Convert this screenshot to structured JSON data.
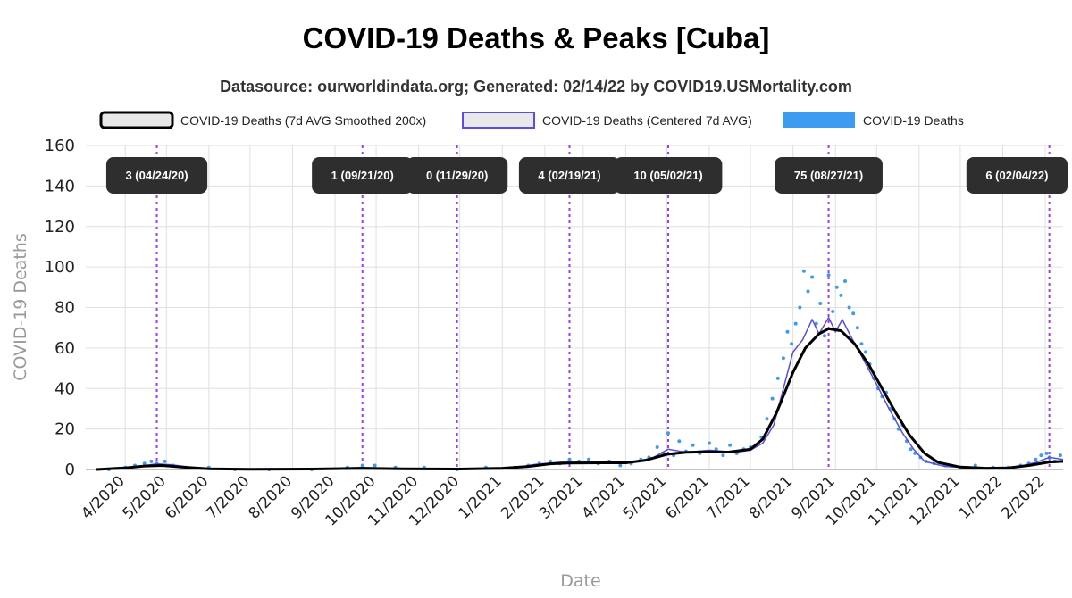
{
  "chart_data": {
    "type": "line",
    "title": "COVID-19 Deaths & Peaks [Cuba]",
    "subtitle": "Datasource: ourworldindata.org; Generated: 02/14/22 by COVID19.USMortality.com",
    "xlabel": "Date",
    "ylabel": "COVID-19 Deaths",
    "ylim": [
      0,
      160
    ],
    "yticks": [
      0,
      20,
      40,
      60,
      80,
      100,
      120,
      140,
      160
    ],
    "xlim": [
      "2020-03-11",
      "2022-02-14"
    ],
    "xticks": [
      {
        "date": "2020-04-01",
        "label": "4/2020"
      },
      {
        "date": "2020-05-01",
        "label": "5/2020"
      },
      {
        "date": "2020-06-01",
        "label": "6/2020"
      },
      {
        "date": "2020-07-01",
        "label": "7/2020"
      },
      {
        "date": "2020-08-01",
        "label": "8/2020"
      },
      {
        "date": "2020-09-01",
        "label": "9/2020"
      },
      {
        "date": "2020-10-01",
        "label": "10/2020"
      },
      {
        "date": "2020-11-01",
        "label": "11/2020"
      },
      {
        "date": "2020-12-01",
        "label": "12/2020"
      },
      {
        "date": "2021-01-01",
        "label": "1/2021"
      },
      {
        "date": "2021-02-01",
        "label": "2/2021"
      },
      {
        "date": "2021-03-01",
        "label": "3/2021"
      },
      {
        "date": "2021-04-01",
        "label": "4/2021"
      },
      {
        "date": "2021-05-01",
        "label": "5/2021"
      },
      {
        "date": "2021-06-01",
        "label": "6/2021"
      },
      {
        "date": "2021-07-01",
        "label": "7/2021"
      },
      {
        "date": "2021-08-01",
        "label": "8/2021"
      },
      {
        "date": "2021-09-01",
        "label": "9/2021"
      },
      {
        "date": "2021-10-01",
        "label": "10/2021"
      },
      {
        "date": "2021-11-01",
        "label": "11/2021"
      },
      {
        "date": "2021-12-01",
        "label": "12/2021"
      },
      {
        "date": "2022-01-01",
        "label": "1/2022"
      },
      {
        "date": "2022-02-01",
        "label": "2/2022"
      }
    ],
    "grid": true,
    "legend": {
      "position": "top",
      "entries": [
        {
          "key": "smoothed",
          "label": "COVID-19 Deaths (7d AVG Smoothed 200x)",
          "fill": "#e8e8e8",
          "stroke": "#000000"
        },
        {
          "key": "centered",
          "label": "COVID-19 Deaths (Centered 7d AVG)",
          "fill": "#e8e8e8",
          "stroke": "#5a4de0"
        },
        {
          "key": "daily",
          "label": "COVID-19 Deaths",
          "fill": "#3d9bf0",
          "stroke": "#3d9bf0"
        }
      ]
    },
    "colors": {
      "smoothed": "#000000",
      "centered": "#5a4de0",
      "daily": "#3d9bf0",
      "peak_line": "#9b3df0",
      "peak_box": "#2e2e2e"
    },
    "peaks": [
      {
        "date": "2020-04-24",
        "label": "3 (04/24/20)"
      },
      {
        "date": "2020-09-21",
        "label": "1 (09/21/20)"
      },
      {
        "date": "2020-11-29",
        "label": "0 (11/29/20)"
      },
      {
        "date": "2021-02-19",
        "label": "4 (02/19/21)"
      },
      {
        "date": "2021-05-02",
        "label": "10 (05/02/21)"
      },
      {
        "date": "2021-08-27",
        "label": "75 (08/27/21)"
      },
      {
        "date": "2022-02-04",
        "label": "6 (02/04/22)"
      }
    ],
    "series": [
      {
        "name": "COVID-19 Deaths (7d AVG Smoothed 200x)",
        "key": "smoothed",
        "points": [
          [
            "2020-03-11",
            0
          ],
          [
            "2020-04-01",
            0.8
          ],
          [
            "2020-04-15",
            1.7
          ],
          [
            "2020-04-28",
            2.0
          ],
          [
            "2020-05-12",
            1.2
          ],
          [
            "2020-06-01",
            0.3
          ],
          [
            "2020-07-01",
            0.1
          ],
          [
            "2020-08-15",
            0.2
          ],
          [
            "2020-09-21",
            0.6
          ],
          [
            "2020-10-20",
            0.3
          ],
          [
            "2020-12-01",
            0.2
          ],
          [
            "2021-01-01",
            0.6
          ],
          [
            "2021-01-20",
            1.5
          ],
          [
            "2021-02-05",
            2.8
          ],
          [
            "2021-02-19",
            3.2
          ],
          [
            "2021-03-15",
            3.3
          ],
          [
            "2021-04-01",
            3.3
          ],
          [
            "2021-04-15",
            4.5
          ],
          [
            "2021-05-01",
            7.5
          ],
          [
            "2021-05-15",
            8.5
          ],
          [
            "2021-06-01",
            8.7
          ],
          [
            "2021-06-15",
            8.6
          ],
          [
            "2021-07-01",
            10
          ],
          [
            "2021-07-10",
            15
          ],
          [
            "2021-07-20",
            28
          ],
          [
            "2021-08-01",
            48
          ],
          [
            "2021-08-10",
            60
          ],
          [
            "2021-08-20",
            67
          ],
          [
            "2021-08-27",
            69.5
          ],
          [
            "2021-09-05",
            68.5
          ],
          [
            "2021-09-15",
            62
          ],
          [
            "2021-09-25",
            52
          ],
          [
            "2021-10-05",
            40
          ],
          [
            "2021-10-15",
            28
          ],
          [
            "2021-10-25",
            17
          ],
          [
            "2021-11-05",
            8
          ],
          [
            "2021-11-15",
            3.5
          ],
          [
            "2021-12-01",
            1.2
          ],
          [
            "2021-12-20",
            0.6
          ],
          [
            "2022-01-05",
            0.8
          ],
          [
            "2022-01-20",
            2
          ],
          [
            "2022-02-04",
            3.7
          ],
          [
            "2022-02-14",
            4
          ]
        ]
      },
      {
        "name": "COVID-19 Deaths (Centered 7d AVG)",
        "key": "centered",
        "points": [
          [
            "2020-03-11",
            0
          ],
          [
            "2020-04-05",
            1
          ],
          [
            "2020-04-24",
            2.8
          ],
          [
            "2020-05-05",
            2.3
          ],
          [
            "2020-05-20",
            1
          ],
          [
            "2020-06-10",
            0.3
          ],
          [
            "2020-08-20",
            0.2
          ],
          [
            "2020-09-21",
            1
          ],
          [
            "2020-10-10",
            0.4
          ],
          [
            "2020-11-29",
            0.1
          ],
          [
            "2021-01-10",
            0.8
          ],
          [
            "2021-01-25",
            2.5
          ],
          [
            "2021-02-10",
            3.5
          ],
          [
            "2021-02-19",
            4
          ],
          [
            "2021-03-10",
            3.5
          ],
          [
            "2021-04-01",
            3
          ],
          [
            "2021-04-20",
            5.5
          ],
          [
            "2021-05-02",
            10
          ],
          [
            "2021-05-15",
            8.5
          ],
          [
            "2021-06-01",
            9.5
          ],
          [
            "2021-06-20",
            8.5
          ],
          [
            "2021-07-01",
            9.5
          ],
          [
            "2021-07-10",
            13
          ],
          [
            "2021-07-18",
            22
          ],
          [
            "2021-07-25",
            40
          ],
          [
            "2021-08-01",
            58
          ],
          [
            "2021-08-08",
            64
          ],
          [
            "2021-08-15",
            74
          ],
          [
            "2021-08-20",
            67
          ],
          [
            "2021-08-27",
            75
          ],
          [
            "2021-09-01",
            68
          ],
          [
            "2021-09-06",
            74
          ],
          [
            "2021-09-12",
            66
          ],
          [
            "2021-09-20",
            56
          ],
          [
            "2021-10-01",
            42
          ],
          [
            "2021-10-10",
            30
          ],
          [
            "2021-10-20",
            18
          ],
          [
            "2021-10-28",
            10
          ],
          [
            "2021-11-05",
            4
          ],
          [
            "2021-11-20",
            1.5
          ],
          [
            "2021-12-15",
            0.6
          ],
          [
            "2022-01-10",
            1
          ],
          [
            "2022-01-25",
            3.5
          ],
          [
            "2022-02-04",
            6
          ],
          [
            "2022-02-14",
            5
          ]
        ]
      },
      {
        "name": "COVID-19 Deaths",
        "key": "daily",
        "points": [
          [
            "2020-03-20",
            0
          ],
          [
            "2020-04-01",
            1
          ],
          [
            "2020-04-08",
            2
          ],
          [
            "2020-04-15",
            3
          ],
          [
            "2020-04-20",
            4
          ],
          [
            "2020-04-24",
            3
          ],
          [
            "2020-04-30",
            4
          ],
          [
            "2020-05-06",
            2
          ],
          [
            "2020-05-15",
            1
          ],
          [
            "2020-06-01",
            1
          ],
          [
            "2020-06-20",
            0
          ],
          [
            "2020-07-15",
            0
          ],
          [
            "2020-08-15",
            0
          ],
          [
            "2020-09-10",
            1
          ],
          [
            "2020-09-21",
            2
          ],
          [
            "2020-09-30",
            2
          ],
          [
            "2020-10-15",
            1
          ],
          [
            "2020-11-05",
            1
          ],
          [
            "2020-11-29",
            0
          ],
          [
            "2020-12-20",
            1
          ],
          [
            "2021-01-10",
            1
          ],
          [
            "2021-01-20",
            2
          ],
          [
            "2021-01-28",
            3
          ],
          [
            "2021-02-05",
            4
          ],
          [
            "2021-02-12",
            3
          ],
          [
            "2021-02-19",
            5
          ],
          [
            "2021-02-26",
            4
          ],
          [
            "2021-03-05",
            5
          ],
          [
            "2021-03-12",
            3
          ],
          [
            "2021-03-20",
            4
          ],
          [
            "2021-03-28",
            2
          ],
          [
            "2021-04-05",
            3
          ],
          [
            "2021-04-12",
            5
          ],
          [
            "2021-04-18",
            6
          ],
          [
            "2021-04-24",
            11
          ],
          [
            "2021-04-28",
            8
          ],
          [
            "2021-05-02",
            18
          ],
          [
            "2021-05-06",
            7
          ],
          [
            "2021-05-10",
            14
          ],
          [
            "2021-05-15",
            9
          ],
          [
            "2021-05-20",
            12
          ],
          [
            "2021-05-25",
            8
          ],
          [
            "2021-06-01",
            13
          ],
          [
            "2021-06-06",
            10
          ],
          [
            "2021-06-11",
            7
          ],
          [
            "2021-06-16",
            12
          ],
          [
            "2021-06-21",
            8
          ],
          [
            "2021-06-26",
            10
          ],
          [
            "2021-07-01",
            11
          ],
          [
            "2021-07-05",
            12
          ],
          [
            "2021-07-09",
            16
          ],
          [
            "2021-07-13",
            25
          ],
          [
            "2021-07-17",
            35
          ],
          [
            "2021-07-21",
            45
          ],
          [
            "2021-07-25",
            55
          ],
          [
            "2021-07-28",
            68
          ],
          [
            "2021-07-31",
            62
          ],
          [
            "2021-08-03",
            72
          ],
          [
            "2021-08-06",
            80
          ],
          [
            "2021-08-09",
            98
          ],
          [
            "2021-08-12",
            88
          ],
          [
            "2021-08-15",
            95
          ],
          [
            "2021-08-18",
            72
          ],
          [
            "2021-08-21",
            82
          ],
          [
            "2021-08-24",
            66
          ],
          [
            "2021-08-27",
            96
          ],
          [
            "2021-08-30",
            78
          ],
          [
            "2021-09-02",
            90
          ],
          [
            "2021-09-05",
            86
          ],
          [
            "2021-09-08",
            93
          ],
          [
            "2021-09-11",
            80
          ],
          [
            "2021-09-14",
            77
          ],
          [
            "2021-09-17",
            70
          ],
          [
            "2021-09-20",
            62
          ],
          [
            "2021-09-23",
            58
          ],
          [
            "2021-09-26",
            52
          ],
          [
            "2021-09-29",
            45
          ],
          [
            "2021-10-02",
            40
          ],
          [
            "2021-10-05",
            36
          ],
          [
            "2021-10-08",
            38
          ],
          [
            "2021-10-11",
            30
          ],
          [
            "2021-10-14",
            25
          ],
          [
            "2021-10-17",
            20
          ],
          [
            "2021-10-20",
            22
          ],
          [
            "2021-10-23",
            14
          ],
          [
            "2021-10-26",
            10
          ],
          [
            "2021-10-29",
            8
          ],
          [
            "2021-11-02",
            6
          ],
          [
            "2021-11-06",
            4
          ],
          [
            "2021-11-12",
            3
          ],
          [
            "2021-11-20",
            2
          ],
          [
            "2021-12-01",
            1
          ],
          [
            "2021-12-12",
            2
          ],
          [
            "2021-12-25",
            1
          ],
          [
            "2022-01-05",
            1
          ],
          [
            "2022-01-14",
            2
          ],
          [
            "2022-01-20",
            3
          ],
          [
            "2022-01-25",
            5
          ],
          [
            "2022-01-29",
            7
          ],
          [
            "2022-02-02",
            8
          ],
          [
            "2022-02-04",
            6
          ],
          [
            "2022-02-08",
            4
          ],
          [
            "2022-02-12",
            7
          ]
        ]
      }
    ]
  }
}
